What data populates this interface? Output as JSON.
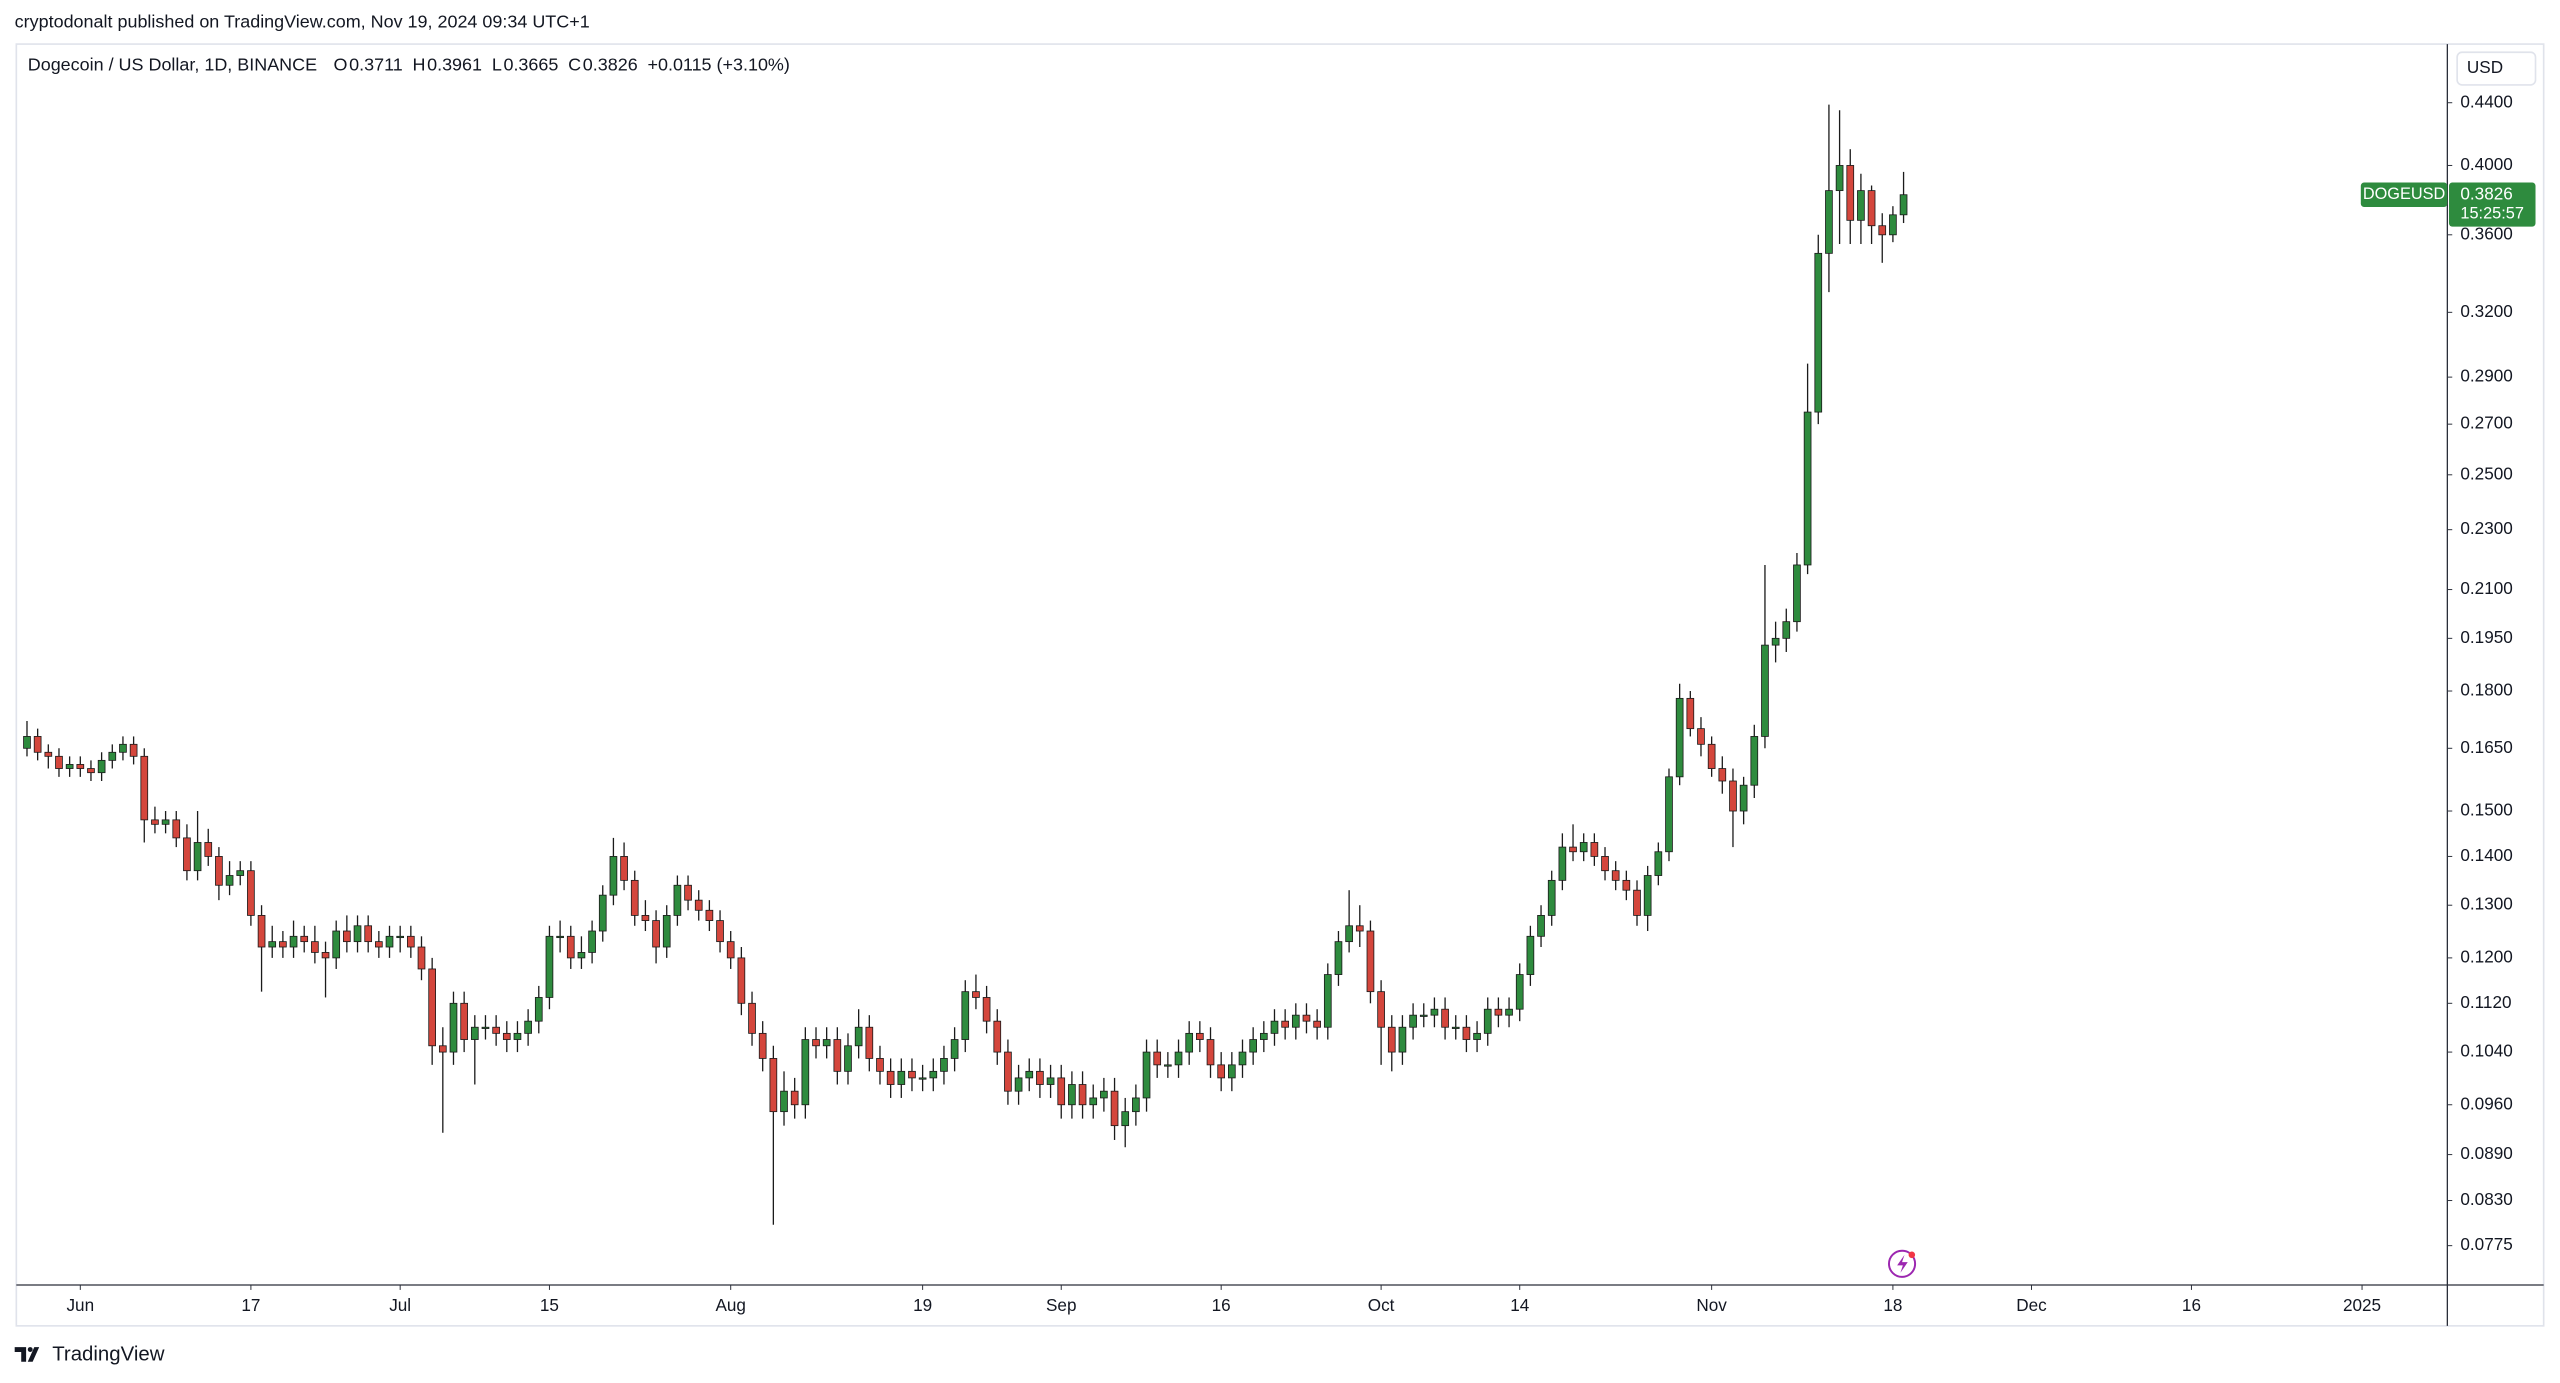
{
  "publisher": "cryptodonalt published on TradingView.com, Nov 19, 2024 09:34 UTC+1",
  "footer": "TradingView",
  "chart_data": {
    "type": "candlestick",
    "title": "Dogecoin / US Dollar, 1D, BINANCE",
    "ohlc_legend": [
      {
        "key": "O",
        "value": "0.3711"
      },
      {
        "key": "H",
        "value": "0.3961"
      },
      {
        "key": "L",
        "value": "0.3665"
      },
      {
        "key": "C",
        "value": "0.3826"
      }
    ],
    "change": "+0.0115 (+3.10%)",
    "currency": "USD",
    "price_tag": {
      "symbol": "DOGEUSD",
      "countdown": "15:25:57"
    },
    "up_color": "#2e8b3e",
    "down_color": "#d4463c",
    "log_scale": true,
    "grid": false,
    "xlim": [
      "2024-05-26",
      "2025-01-09"
    ],
    "ylim": [
      0.073,
      0.481
    ],
    "xticks": [
      {
        "value": "2024-06-01",
        "label": "Jun"
      },
      {
        "value": "2024-06-17",
        "label": "17"
      },
      {
        "value": "2024-07-01",
        "label": "Jul"
      },
      {
        "value": "2024-07-15",
        "label": "15"
      },
      {
        "value": "2024-08-01",
        "label": "Aug"
      },
      {
        "value": "2024-08-19",
        "label": "19"
      },
      {
        "value": "2024-09-01",
        "label": "Sep"
      },
      {
        "value": "2024-09-16",
        "label": "16"
      },
      {
        "value": "2024-10-01",
        "label": "Oct"
      },
      {
        "value": "2024-10-14",
        "label": "14"
      },
      {
        "value": "2024-11-01",
        "label": "Nov"
      },
      {
        "value": "2024-11-18",
        "label": "18"
      },
      {
        "value": "2024-12-01",
        "label": "Dec"
      },
      {
        "value": "2024-12-16",
        "label": "16"
      },
      {
        "value": "2025-01-01",
        "label": "2025"
      }
    ],
    "yticks": [
      {
        "value": 0.0775,
        "label": "0.0775"
      },
      {
        "value": 0.083,
        "label": "0.0830"
      },
      {
        "value": 0.089,
        "label": "0.0890"
      },
      {
        "value": 0.096,
        "label": "0.0960"
      },
      {
        "value": 0.104,
        "label": "0.1040"
      },
      {
        "value": 0.112,
        "label": "0.1120"
      },
      {
        "value": 0.12,
        "label": "0.1200"
      },
      {
        "value": 0.13,
        "label": "0.1300"
      },
      {
        "value": 0.14,
        "label": "0.1400"
      },
      {
        "value": 0.15,
        "label": "0.1500"
      },
      {
        "value": 0.165,
        "label": "0.1650"
      },
      {
        "value": 0.18,
        "label": "0.1800"
      },
      {
        "value": 0.195,
        "label": "0.1950"
      },
      {
        "value": 0.21,
        "label": "0.2100"
      },
      {
        "value": 0.23,
        "label": "0.2300"
      },
      {
        "value": 0.25,
        "label": "0.2500"
      },
      {
        "value": 0.27,
        "label": "0.2700"
      },
      {
        "value": 0.29,
        "label": "0.2900"
      },
      {
        "value": 0.32,
        "label": "0.3200"
      },
      {
        "value": 0.36,
        "label": "0.3600"
      },
      {
        "value": 0.4,
        "label": "0.4000"
      },
      {
        "value": 0.44,
        "label": "0.4400"
      }
    ],
    "x": [
      "2024-05-27",
      "2024-05-28",
      "2024-05-29",
      "2024-05-30",
      "2024-05-31",
      "2024-06-01",
      "2024-06-02",
      "2024-06-03",
      "2024-06-04",
      "2024-06-05",
      "2024-06-06",
      "2024-06-07",
      "2024-06-08",
      "2024-06-09",
      "2024-06-10",
      "2024-06-11",
      "2024-06-12",
      "2024-06-13",
      "2024-06-14",
      "2024-06-15",
      "2024-06-16",
      "2024-06-17",
      "2024-06-18",
      "2024-06-19",
      "2024-06-20",
      "2024-06-21",
      "2024-06-22",
      "2024-06-23",
      "2024-06-24",
      "2024-06-25",
      "2024-06-26",
      "2024-06-27",
      "2024-06-28",
      "2024-06-29",
      "2024-06-30",
      "2024-07-01",
      "2024-07-02",
      "2024-07-03",
      "2024-07-04",
      "2024-07-05",
      "2024-07-06",
      "2024-07-07",
      "2024-07-08",
      "2024-07-09",
      "2024-07-10",
      "2024-07-11",
      "2024-07-12",
      "2024-07-13",
      "2024-07-14",
      "2024-07-15",
      "2024-07-16",
      "2024-07-17",
      "2024-07-18",
      "2024-07-19",
      "2024-07-20",
      "2024-07-21",
      "2024-07-22",
      "2024-07-23",
      "2024-07-24",
      "2024-07-25",
      "2024-07-26",
      "2024-07-27",
      "2024-07-28",
      "2024-07-29",
      "2024-07-30",
      "2024-07-31",
      "2024-08-01",
      "2024-08-02",
      "2024-08-03",
      "2024-08-04",
      "2024-08-05",
      "2024-08-06",
      "2024-08-07",
      "2024-08-08",
      "2024-08-09",
      "2024-08-10",
      "2024-08-11",
      "2024-08-12",
      "2024-08-13",
      "2024-08-14",
      "2024-08-15",
      "2024-08-16",
      "2024-08-17",
      "2024-08-18",
      "2024-08-19",
      "2024-08-20",
      "2024-08-21",
      "2024-08-22",
      "2024-08-23",
      "2024-08-24",
      "2024-08-25",
      "2024-08-26",
      "2024-08-27",
      "2024-08-28",
      "2024-08-29",
      "2024-08-30",
      "2024-08-31",
      "2024-09-01",
      "2024-09-02",
      "2024-09-03",
      "2024-09-04",
      "2024-09-05",
      "2024-09-06",
      "2024-09-07",
      "2024-09-08",
      "2024-09-09",
      "2024-09-10",
      "2024-09-11",
      "2024-09-12",
      "2024-09-13",
      "2024-09-14",
      "2024-09-15",
      "2024-09-16",
      "2024-09-17",
      "2024-09-18",
      "2024-09-19",
      "2024-09-20",
      "2024-09-21",
      "2024-09-22",
      "2024-09-23",
      "2024-09-24",
      "2024-09-25",
      "2024-09-26",
      "2024-09-27",
      "2024-09-28",
      "2024-09-29",
      "2024-09-30",
      "2024-10-01",
      "2024-10-02",
      "2024-10-03",
      "2024-10-04",
      "2024-10-05",
      "2024-10-06",
      "2024-10-07",
      "2024-10-08",
      "2024-10-09",
      "2024-10-10",
      "2024-10-11",
      "2024-10-12",
      "2024-10-13",
      "2024-10-14",
      "2024-10-15",
      "2024-10-16",
      "2024-10-17",
      "2024-10-18",
      "2024-10-19",
      "2024-10-20",
      "2024-10-21",
      "2024-10-22",
      "2024-10-23",
      "2024-10-24",
      "2024-10-25",
      "2024-10-26",
      "2024-10-27",
      "2024-10-28",
      "2024-10-29",
      "2024-10-30",
      "2024-10-31",
      "2024-11-01",
      "2024-11-02",
      "2024-11-03",
      "2024-11-04",
      "2024-11-05",
      "2024-11-06",
      "2024-11-07",
      "2024-11-08",
      "2024-11-09",
      "2024-11-10",
      "2024-11-11",
      "2024-11-12",
      "2024-11-13",
      "2024-11-14",
      "2024-11-15",
      "2024-11-16",
      "2024-11-17",
      "2024-11-18",
      "2024-11-19"
    ],
    "open": [
      0.165,
      0.168,
      0.164,
      0.163,
      0.16,
      0.161,
      0.16,
      0.159,
      0.162,
      0.164,
      0.166,
      0.163,
      0.148,
      0.147,
      0.148,
      0.144,
      0.137,
      0.143,
      0.14,
      0.134,
      0.136,
      0.137,
      0.128,
      0.122,
      0.123,
      0.122,
      0.124,
      0.123,
      0.121,
      0.12,
      0.125,
      0.123,
      0.126,
      0.123,
      0.122,
      0.124,
      0.124,
      0.122,
      0.118,
      0.105,
      0.104,
      0.112,
      0.106,
      0.108,
      0.108,
      0.107,
      0.106,
      0.107,
      0.109,
      0.113,
      0.124,
      0.124,
      0.12,
      0.121,
      0.125,
      0.132,
      0.14,
      0.135,
      0.128,
      0.127,
      0.122,
      0.128,
      0.134,
      0.131,
      0.129,
      0.127,
      0.123,
      0.12,
      0.112,
      0.107,
      0.103,
      0.095,
      0.098,
      0.096,
      0.106,
      0.105,
      0.106,
      0.101,
      0.105,
      0.108,
      0.103,
      0.101,
      0.099,
      0.101,
      0.1,
      0.1,
      0.101,
      0.103,
      0.106,
      0.114,
      0.113,
      0.109,
      0.104,
      0.098,
      0.1,
      0.101,
      0.099,
      0.1,
      0.096,
      0.099,
      0.096,
      0.097,
      0.098,
      0.093,
      0.095,
      0.097,
      0.104,
      0.102,
      0.102,
      0.104,
      0.107,
      0.106,
      0.102,
      0.1,
      0.102,
      0.104,
      0.106,
      0.107,
      0.109,
      0.108,
      0.11,
      0.109,
      0.108,
      0.117,
      0.123,
      0.126,
      0.125,
      0.114,
      0.108,
      0.104,
      0.108,
      0.11,
      0.11,
      0.111,
      0.108,
      0.108,
      0.106,
      0.107,
      0.111,
      0.11,
      0.111,
      0.117,
      0.124,
      0.128,
      0.135,
      0.142,
      0.141,
      0.143,
      0.14,
      0.137,
      0.135,
      0.133,
      0.128,
      0.136,
      0.141,
      0.158,
      0.178,
      0.17,
      0.166,
      0.16,
      0.157,
      0.15,
      0.156,
      0.168,
      0.193,
      0.195,
      0.2,
      0.218,
      0.275,
      0.35,
      0.385,
      0.4,
      0.368,
      0.385,
      0.365,
      0.36,
      0.3711
    ],
    "high": [
      0.172,
      0.17,
      0.166,
      0.165,
      0.163,
      0.163,
      0.162,
      0.164,
      0.166,
      0.168,
      0.168,
      0.165,
      0.151,
      0.15,
      0.15,
      0.147,
      0.15,
      0.146,
      0.142,
      0.139,
      0.139,
      0.139,
      0.13,
      0.126,
      0.125,
      0.127,
      0.126,
      0.126,
      0.123,
      0.127,
      0.128,
      0.128,
      0.128,
      0.125,
      0.126,
      0.126,
      0.126,
      0.124,
      0.12,
      0.108,
      0.114,
      0.114,
      0.11,
      0.11,
      0.11,
      0.109,
      0.109,
      0.111,
      0.115,
      0.126,
      0.127,
      0.126,
      0.124,
      0.127,
      0.134,
      0.144,
      0.143,
      0.137,
      0.131,
      0.129,
      0.13,
      0.136,
      0.136,
      0.133,
      0.131,
      0.129,
      0.125,
      0.122,
      0.114,
      0.109,
      0.105,
      0.101,
      0.1,
      0.108,
      0.108,
      0.108,
      0.108,
      0.107,
      0.111,
      0.11,
      0.105,
      0.103,
      0.103,
      0.103,
      0.102,
      0.103,
      0.105,
      0.108,
      0.116,
      0.117,
      0.115,
      0.111,
      0.106,
      0.102,
      0.103,
      0.103,
      0.102,
      0.102,
      0.101,
      0.101,
      0.099,
      0.1,
      0.1,
      0.097,
      0.099,
      0.106,
      0.106,
      0.104,
      0.106,
      0.109,
      0.109,
      0.108,
      0.104,
      0.104,
      0.106,
      0.108,
      0.109,
      0.111,
      0.111,
      0.112,
      0.112,
      0.111,
      0.119,
      0.125,
      0.133,
      0.13,
      0.127,
      0.116,
      0.11,
      0.11,
      0.112,
      0.112,
      0.113,
      0.113,
      0.11,
      0.11,
      0.109,
      0.113,
      0.113,
      0.113,
      0.119,
      0.126,
      0.13,
      0.137,
      0.145,
      0.147,
      0.145,
      0.145,
      0.142,
      0.139,
      0.137,
      0.135,
      0.138,
      0.143,
      0.16,
      0.182,
      0.18,
      0.173,
      0.168,
      0.163,
      0.16,
      0.158,
      0.171,
      0.218,
      0.2,
      0.204,
      0.222,
      0.296,
      0.36,
      0.4387,
      0.435,
      0.41,
      0.395,
      0.388,
      0.372,
      0.376,
      0.3961
    ],
    "low": [
      0.163,
      0.162,
      0.16,
      0.158,
      0.158,
      0.158,
      0.157,
      0.157,
      0.16,
      0.162,
      0.161,
      0.143,
      0.145,
      0.145,
      0.142,
      0.135,
      0.135,
      0.138,
      0.131,
      0.132,
      0.134,
      0.126,
      0.114,
      0.12,
      0.12,
      0.12,
      0.121,
      0.119,
      0.113,
      0.118,
      0.121,
      0.121,
      0.121,
      0.12,
      0.12,
      0.121,
      0.12,
      0.116,
      0.102,
      0.092,
      0.102,
      0.104,
      0.099,
      0.106,
      0.105,
      0.104,
      0.104,
      0.105,
      0.107,
      0.111,
      0.121,
      0.118,
      0.118,
      0.119,
      0.123,
      0.13,
      0.133,
      0.126,
      0.125,
      0.119,
      0.12,
      0.126,
      0.129,
      0.127,
      0.125,
      0.121,
      0.118,
      0.11,
      0.105,
      0.101,
      0.08,
      0.093,
      0.094,
      0.094,
      0.103,
      0.103,
      0.099,
      0.099,
      0.103,
      0.101,
      0.099,
      0.097,
      0.097,
      0.098,
      0.098,
      0.098,
      0.099,
      0.101,
      0.104,
      0.111,
      0.107,
      0.102,
      0.096,
      0.096,
      0.098,
      0.097,
      0.097,
      0.094,
      0.094,
      0.094,
      0.094,
      0.095,
      0.091,
      0.09,
      0.093,
      0.095,
      0.1,
      0.1,
      0.1,
      0.102,
      0.104,
      0.1,
      0.098,
      0.098,
      0.1,
      0.102,
      0.104,
      0.105,
      0.106,
      0.106,
      0.107,
      0.106,
      0.106,
      0.115,
      0.121,
      0.122,
      0.112,
      0.102,
      0.101,
      0.102,
      0.106,
      0.108,
      0.108,
      0.106,
      0.106,
      0.104,
      0.104,
      0.105,
      0.108,
      0.108,
      0.109,
      0.115,
      0.122,
      0.126,
      0.133,
      0.139,
      0.139,
      0.138,
      0.135,
      0.133,
      0.131,
      0.126,
      0.125,
      0.134,
      0.139,
      0.156,
      0.168,
      0.163,
      0.158,
      0.154,
      0.142,
      0.147,
      0.153,
      0.165,
      0.188,
      0.191,
      0.197,
      0.215,
      0.27,
      0.33,
      0.355,
      0.355,
      0.355,
      0.355,
      0.345,
      0.356,
      0.3665
    ],
    "close": [
      0.168,
      0.164,
      0.163,
      0.16,
      0.161,
      0.16,
      0.159,
      0.162,
      0.164,
      0.166,
      0.163,
      0.148,
      0.147,
      0.148,
      0.144,
      0.137,
      0.143,
      0.14,
      0.134,
      0.136,
      0.137,
      0.128,
      0.122,
      0.123,
      0.122,
      0.124,
      0.123,
      0.121,
      0.12,
      0.125,
      0.123,
      0.126,
      0.123,
      0.122,
      0.124,
      0.124,
      0.122,
      0.118,
      0.105,
      0.104,
      0.112,
      0.106,
      0.108,
      0.108,
      0.107,
      0.106,
      0.107,
      0.109,
      0.113,
      0.124,
      0.124,
      0.12,
      0.121,
      0.125,
      0.132,
      0.14,
      0.135,
      0.128,
      0.127,
      0.122,
      0.128,
      0.134,
      0.131,
      0.129,
      0.127,
      0.123,
      0.12,
      0.112,
      0.107,
      0.103,
      0.095,
      0.098,
      0.096,
      0.106,
      0.105,
      0.106,
      0.101,
      0.105,
      0.108,
      0.103,
      0.101,
      0.099,
      0.101,
      0.1,
      0.1,
      0.101,
      0.103,
      0.106,
      0.114,
      0.113,
      0.109,
      0.104,
      0.098,
      0.1,
      0.101,
      0.099,
      0.1,
      0.096,
      0.099,
      0.096,
      0.097,
      0.098,
      0.093,
      0.095,
      0.097,
      0.104,
      0.102,
      0.102,
      0.104,
      0.107,
      0.106,
      0.102,
      0.1,
      0.102,
      0.104,
      0.106,
      0.107,
      0.109,
      0.108,
      0.11,
      0.109,
      0.108,
      0.117,
      0.123,
      0.126,
      0.125,
      0.114,
      0.108,
      0.104,
      0.108,
      0.11,
      0.11,
      0.111,
      0.108,
      0.108,
      0.106,
      0.107,
      0.111,
      0.11,
      0.111,
      0.117,
      0.124,
      0.128,
      0.135,
      0.142,
      0.141,
      0.143,
      0.14,
      0.137,
      0.135,
      0.133,
      0.128,
      0.136,
      0.141,
      0.158,
      0.178,
      0.17,
      0.166,
      0.16,
      0.157,
      0.15,
      0.156,
      0.168,
      0.193,
      0.195,
      0.2,
      0.218,
      0.275,
      0.35,
      0.385,
      0.4,
      0.368,
      0.385,
      0.365,
      0.36,
      0.3711,
      0.3826
    ]
  }
}
